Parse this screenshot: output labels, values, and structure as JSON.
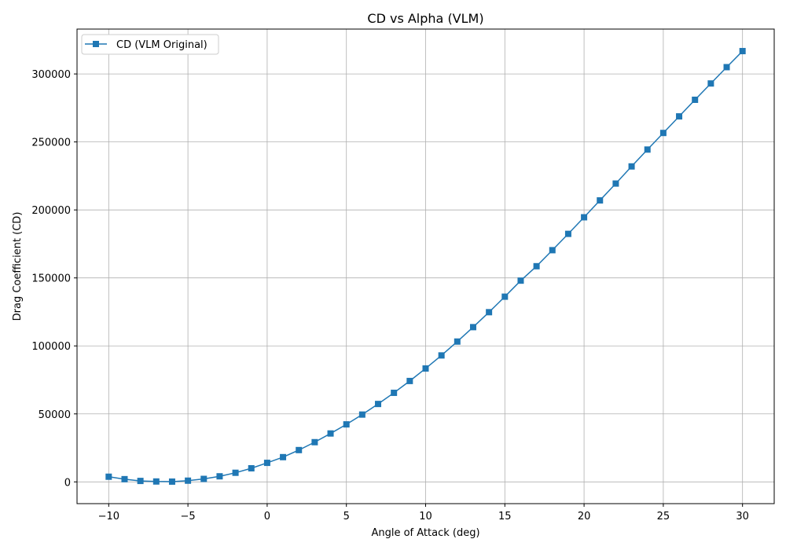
{
  "chart_data": {
    "type": "line",
    "title": "CD vs Alpha (VLM)",
    "xlabel": "Angle of Attack (deg)",
    "ylabel": "Drag Coefficient (CD)",
    "xlim": [
      -12,
      32
    ],
    "ylim": [
      -16000,
      333000
    ],
    "xticks": [
      -10,
      -5,
      0,
      5,
      10,
      15,
      20,
      25,
      30
    ],
    "yticks": [
      0,
      50000,
      100000,
      150000,
      200000,
      250000,
      300000
    ],
    "xtick_labels": [
      "−10",
      "−5",
      "0",
      "5",
      "10",
      "15",
      "20",
      "25",
      "30"
    ],
    "ytick_labels": [
      "0",
      "50000",
      "100000",
      "150000",
      "200000",
      "250000",
      "300000"
    ],
    "grid": true,
    "legend_position": "top-left",
    "series": [
      {
        "name": "CD (VLM Original)",
        "color": "#1f77b4",
        "marker": "square",
        "x": [
          -10,
          -9,
          -8,
          -7,
          -6,
          -5,
          -4,
          -3,
          -2,
          -1,
          0,
          1,
          2,
          3,
          4,
          5,
          6,
          7,
          8,
          9,
          10,
          11,
          12,
          13,
          14,
          15,
          16,
          17,
          18,
          19,
          20,
          21,
          22,
          23,
          24,
          25,
          26,
          27,
          28,
          29,
          30
        ],
        "y": [
          3800,
          2000,
          700,
          300,
          200,
          900,
          2200,
          4100,
          6700,
          10000,
          14000,
          18200,
          23400,
          29200,
          35600,
          42300,
          49500,
          57300,
          65500,
          74200,
          83400,
          93000,
          103200,
          113800,
          124800,
          136200,
          148000,
          158600,
          170400,
          182400,
          194600,
          207000,
          219400,
          232000,
          244400,
          256600,
          268800,
          281000,
          293000,
          305000,
          316800
        ]
      }
    ]
  }
}
